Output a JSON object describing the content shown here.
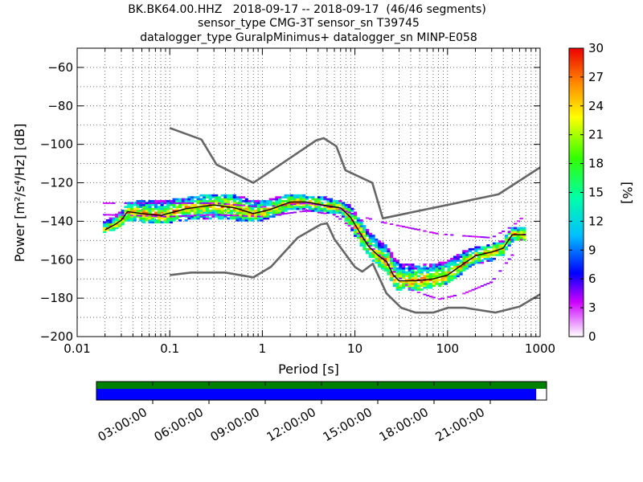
{
  "chart_data": {
    "type": "heatmap",
    "title_lines": [
      "BK.BK64.00.HHZ   2018-09-17 -- 2018-09-17  (46/46 segments)",
      "sensor_type CMG-3T sensor_sn T39745",
      "datalogger_type GuralpMinimus+ datalogger_sn MINP-E058"
    ],
    "xlabel": "Period [s]",
    "ylabel": "Power [m²/s⁴/Hz] [dB]",
    "x_scale": "log",
    "xlim": [
      0.01,
      1000
    ],
    "ylim": [
      -200,
      -50
    ],
    "x_ticks": [
      0.01,
      0.1,
      1,
      10,
      100,
      1000
    ],
    "x_tick_labels": [
      "0.01",
      "0.1",
      "1",
      "10",
      "100",
      "1000"
    ],
    "y_ticks": [
      -200,
      -180,
      -160,
      -140,
      -120,
      -100,
      -80,
      -60
    ],
    "y_tick_labels": [
      "−200",
      "−180",
      "−160",
      "−140",
      "−120",
      "−100",
      "−80",
      "−60"
    ],
    "grid": true,
    "colorbar": {
      "label": "[%]",
      "range": [
        0,
        30
      ],
      "ticks": [
        0,
        3,
        6,
        9,
        12,
        15,
        18,
        21,
        24,
        27,
        30
      ]
    },
    "series": [
      {
        "role": "high-noise-model",
        "color": "#666666",
        "points": [
          [
            0.1,
            -91.5
          ],
          [
            0.22,
            -97.5
          ],
          [
            0.32,
            -110.5
          ],
          [
            0.8,
            -120
          ],
          [
            3.8,
            -98
          ],
          [
            4.6,
            -96.8
          ],
          [
            6.3,
            -101
          ],
          [
            7.9,
            -113.5
          ],
          [
            15.4,
            -120
          ],
          [
            20,
            -138.5
          ],
          [
            354.8,
            -126
          ],
          [
            1000,
            -112
          ]
        ]
      },
      {
        "role": "low-noise-model",
        "color": "#666666",
        "points": [
          [
            0.1,
            -168
          ],
          [
            0.17,
            -166.7
          ],
          [
            0.4,
            -166.7
          ],
          [
            0.8,
            -169.2
          ],
          [
            1.24,
            -163.7
          ],
          [
            2.4,
            -148.6
          ],
          [
            4.3,
            -141.6
          ],
          [
            5,
            -141.1
          ],
          [
            6,
            -149.3
          ],
          [
            10,
            -163.8
          ],
          [
            12,
            -166.2
          ],
          [
            15.6,
            -162.1
          ],
          [
            21.9,
            -177.5
          ],
          [
            31.6,
            -185
          ],
          [
            45,
            -187.5
          ],
          [
            70,
            -187.5
          ],
          [
            101,
            -185
          ],
          [
            154,
            -185
          ],
          [
            328,
            -187.5
          ],
          [
            600,
            -184.4
          ],
          [
            1000,
            -178
          ]
        ]
      },
      {
        "role": "mode",
        "color": "#000000",
        "points": [
          [
            0.02,
            -144.5
          ],
          [
            0.025,
            -142
          ],
          [
            0.03,
            -139.5
          ],
          [
            0.035,
            -135
          ],
          [
            0.05,
            -136
          ],
          [
            0.08,
            -137
          ],
          [
            0.15,
            -133.5
          ],
          [
            0.3,
            -131.5
          ],
          [
            0.5,
            -133
          ],
          [
            0.8,
            -136
          ],
          [
            1.2,
            -134
          ],
          [
            2,
            -130
          ],
          [
            3,
            -130
          ],
          [
            5,
            -132
          ],
          [
            7,
            -133
          ],
          [
            9,
            -138
          ],
          [
            11,
            -145
          ],
          [
            14,
            -153
          ],
          [
            18,
            -158
          ],
          [
            22,
            -161
          ],
          [
            26,
            -168
          ],
          [
            30,
            -171
          ],
          [
            45,
            -171
          ],
          [
            70,
            -170
          ],
          [
            100,
            -168
          ],
          [
            150,
            -162
          ],
          [
            200,
            -158
          ],
          [
            300,
            -156
          ],
          [
            400,
            -154
          ],
          [
            500,
            -147
          ],
          [
            700,
            -147
          ]
        ]
      }
    ],
    "density_envelope": {
      "periods": [
        0.02,
        0.025,
        0.03,
        0.035,
        0.05,
        0.08,
        0.15,
        0.3,
        0.5,
        0.8,
        1.2,
        2,
        3,
        5,
        7,
        9,
        11,
        14,
        18,
        22,
        26,
        30,
        45,
        70,
        100,
        150,
        200,
        300,
        400,
        500,
        700
      ],
      "upper": [
        -140,
        -138,
        -135,
        -131,
        -129,
        -130,
        -128,
        -126,
        -126,
        -130,
        -129,
        -126,
        -127,
        -128,
        -130,
        -132,
        -138,
        -146,
        -150,
        -153,
        -158,
        -162,
        -163,
        -162,
        -161,
        -156,
        -154,
        -152,
        -150,
        -143,
        -143
      ],
      "lower": [
        -146,
        -144,
        -142,
        -139,
        -140,
        -141,
        -139,
        -138,
        -139,
        -140,
        -138,
        -134,
        -134,
        -135,
        -136,
        -143,
        -151,
        -158,
        -163,
        -166,
        -173,
        -176,
        -176,
        -174,
        -172,
        -166,
        -162,
        -160,
        -157,
        -150,
        -150
      ]
    },
    "outlier_band": {
      "periods": [
        0.02,
        0.1,
        0.3,
        1,
        3,
        6,
        10,
        20,
        40,
        80,
        150,
        300,
        500,
        700
      ],
      "upper": [
        -131,
        -131,
        -131,
        -133,
        -131,
        -133,
        -137,
        -141,
        -144,
        -147,
        -148,
        -149,
        -143,
        -137
      ],
      "lower": [
        -137,
        -138,
        -137,
        -138,
        -135,
        -137,
        -145,
        -160,
        -176,
        -181,
        -178,
        -172,
        -158,
        -146
      ]
    }
  },
  "time_axis": {
    "labels": [
      "03:00:00",
      "06:00:00",
      "09:00:00",
      "12:00:00",
      "15:00:00",
      "18:00:00",
      "21:00:00"
    ],
    "hours": [
      3,
      6,
      9,
      12,
      15,
      18,
      21
    ],
    "data_coverage_fraction": 0.977,
    "colors": {
      "segments": "#008000",
      "data": "#0000ff"
    }
  }
}
